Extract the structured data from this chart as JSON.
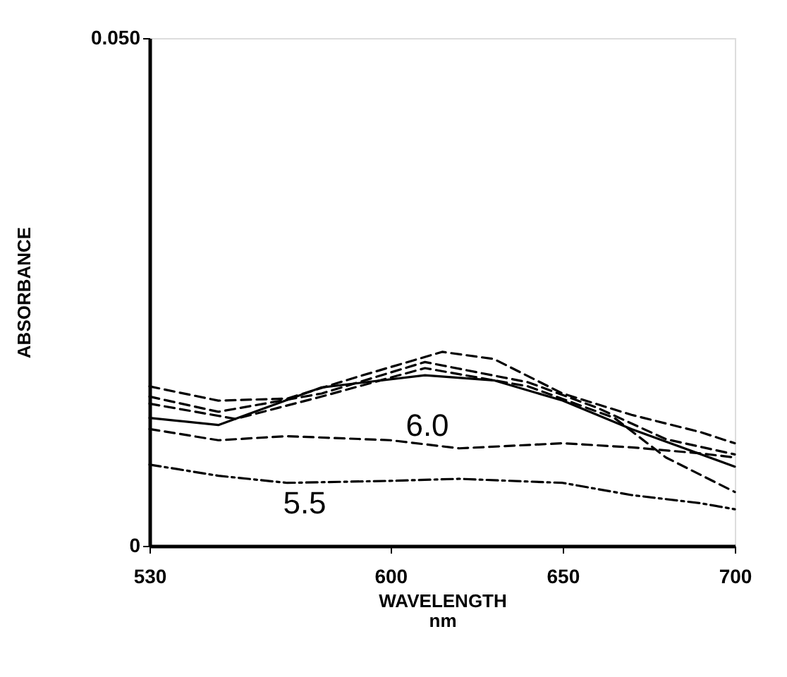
{
  "chart_data": {
    "type": "line",
    "xlabel": "WAVELENGTH\nnm",
    "ylabel": "ABSORBANCE",
    "xlim": [
      530,
      700
    ],
    "xticks": [
      530,
      600,
      650,
      700
    ],
    "ylim": [
      0,
      0.05
    ],
    "yticks": [
      0,
      {
        "value": 0.05,
        "label": "0.050"
      }
    ],
    "grid": false,
    "marker": "none",
    "series": [
      {
        "color": "#000000",
        "line_style": "solid",
        "x": [
          530,
          550,
          580,
          610,
          630,
          650,
          670,
          700
        ],
        "values": [
          0.0126,
          0.0119,
          0.0156,
          0.0168,
          0.0163,
          0.0143,
          0.0115,
          0.0078
        ]
      },
      {
        "color": "#000000",
        "line_style": "dashed",
        "x": [
          530,
          550,
          570,
          590,
          615,
          630,
          650,
          670,
          690,
          700
        ],
        "values": [
          0.0157,
          0.0143,
          0.0145,
          0.0166,
          0.0191,
          0.0184,
          0.015,
          0.0129,
          0.0112,
          0.0101
        ]
      },
      {
        "color": "#000000",
        "line_style": "dashed",
        "x": [
          530,
          550,
          580,
          610,
          640,
          660,
          680,
          700
        ],
        "values": [
          0.0147,
          0.0132,
          0.015,
          0.0181,
          0.0161,
          0.0136,
          0.0105,
          0.009
        ]
      },
      {
        "color": "#000000",
        "line_style": "dashed",
        "x": [
          530,
          555,
          580,
          610,
          640,
          665,
          680,
          700
        ],
        "values": [
          0.014,
          0.0125,
          0.0147,
          0.0175,
          0.0157,
          0.0126,
          0.0087,
          0.0053
        ]
      },
      {
        "color": "#000000",
        "line_style": "dashed",
        "x": [
          530,
          550,
          570,
          600,
          620,
          650,
          670,
          690,
          700
        ],
        "values": [
          0.0115,
          0.0104,
          0.0108,
          0.0104,
          0.0096,
          0.0101,
          0.0097,
          0.0091,
          0.0087
        ]
      },
      {
        "color": "#000000",
        "line_style": "dashdot",
        "x": [
          530,
          550,
          570,
          600,
          620,
          650,
          670,
          690,
          700
        ],
        "values": [
          0.008,
          0.0069,
          0.0062,
          0.0064,
          0.0066,
          0.0062,
          0.005,
          0.0042,
          0.0036
        ]
      }
    ],
    "annotations": [
      "6.0",
      "5.5"
    ]
  }
}
